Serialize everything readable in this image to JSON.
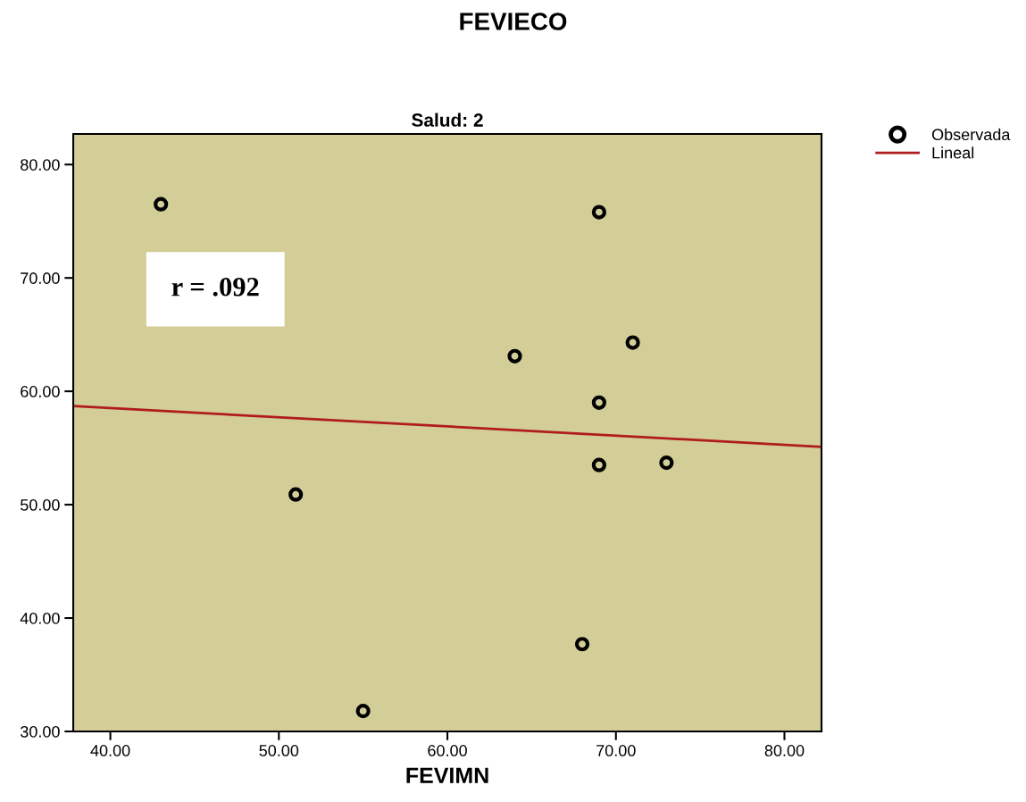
{
  "chart_data": {
    "type": "scatter",
    "title": "FEVIECO",
    "subtitle": "Salud: 2",
    "xlabel": "FEVIMN",
    "series": [
      {
        "name": "Observada",
        "marker": "circle",
        "color": "#000000",
        "x": [
          43,
          69,
          64,
          71,
          69,
          51,
          69,
          73,
          68,
          55
        ],
        "values": [
          76.5,
          75.8,
          63.1,
          64.3,
          59.0,
          50.9,
          53.5,
          53.7,
          37.7,
          31.8
        ]
      },
      {
        "name": "Lineal",
        "type": "line",
        "color": "#b01c1c",
        "x": [
          37.8,
          82.2
        ],
        "values": [
          58.7,
          55.1
        ]
      }
    ],
    "xlim": [
      37.8,
      82.2
    ],
    "ylim": [
      30,
      82.7
    ],
    "xticks": [
      {
        "value": 40,
        "label": "40.00"
      },
      {
        "value": 50,
        "label": "50.00"
      },
      {
        "value": 60,
        "label": "60.00"
      },
      {
        "value": 70,
        "label": "70.00"
      },
      {
        "value": 80,
        "label": "80.00"
      }
    ],
    "yticks": [
      {
        "value": 30,
        "label": "30.00"
      },
      {
        "value": 40,
        "label": "40.00"
      },
      {
        "value": 50,
        "label": "50.00"
      },
      {
        "value": 60,
        "label": "60.00"
      },
      {
        "value": 70,
        "label": "70.00"
      },
      {
        "value": 80,
        "label": "80.00"
      }
    ],
    "annotations": [
      "r = .092"
    ],
    "legend": "top right",
    "grid": false
  }
}
